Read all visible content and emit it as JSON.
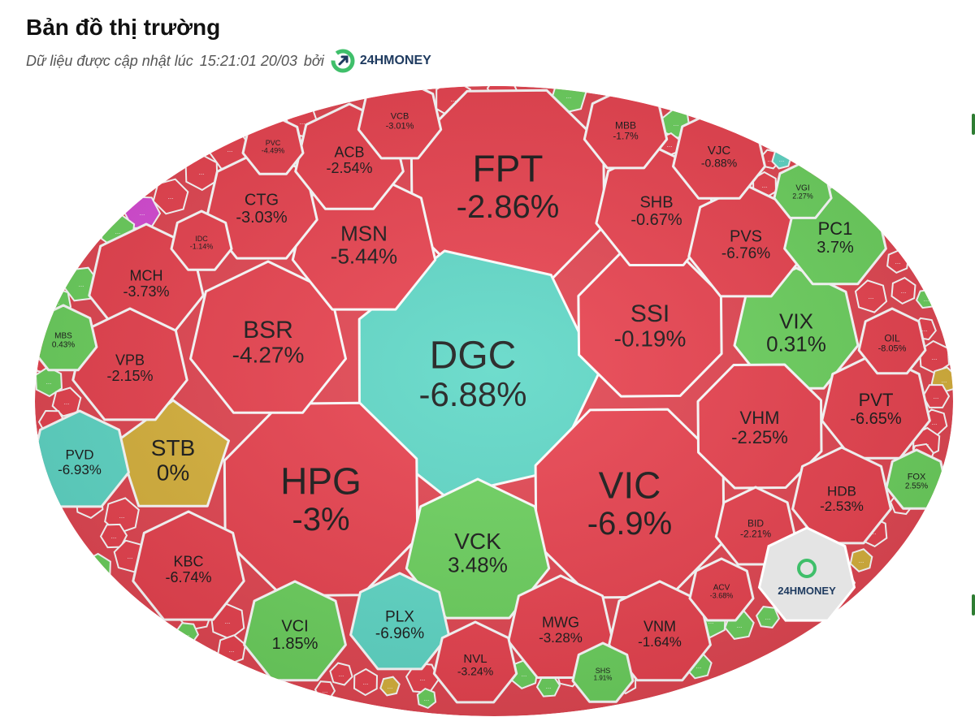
{
  "header": {
    "title": "Bản đồ thị trường",
    "updated_prefix": "Dữ liệu được cập nhật lúc",
    "updated_time": "15:21:01 20/03",
    "updated_by": "bởi",
    "brand": "24HMONEY"
  },
  "colors": {
    "down": "#e9424f",
    "up": "#6cd15e",
    "ceiling": "#d84bd6",
    "floor": "#5fd8c7",
    "reference": "#d8b23c",
    "brand_badge": "#e4e4e4"
  },
  "placeholder_label": "...",
  "watermark": "24HMONEY",
  "stocks": [
    {
      "id": "fpt",
      "ticker": "FPT",
      "change": "-2.86%",
      "status": "down"
    },
    {
      "id": "dgc",
      "ticker": "DGC",
      "change": "-6.88%",
      "status": "floor"
    },
    {
      "id": "hpg",
      "ticker": "HPG",
      "change": "-3%",
      "status": "down"
    },
    {
      "id": "vic",
      "ticker": "VIC",
      "change": "-6.9%",
      "status": "down"
    },
    {
      "id": "bsr",
      "ticker": "BSR",
      "change": "-4.27%",
      "status": "down"
    },
    {
      "id": "msn",
      "ticker": "MSN",
      "change": "-5.44%",
      "status": "down"
    },
    {
      "id": "ssi",
      "ticker": "SSI",
      "change": "-0.19%",
      "status": "down"
    },
    {
      "id": "vix",
      "ticker": "VIX",
      "change": "0.31%",
      "status": "up"
    },
    {
      "id": "vck",
      "ticker": "VCK",
      "change": "3.48%",
      "status": "up"
    },
    {
      "id": "stb",
      "ticker": "STB",
      "change": "0%",
      "status": "reference"
    },
    {
      "id": "vhm",
      "ticker": "VHM",
      "change": "-2.25%",
      "status": "down"
    },
    {
      "id": "pvt",
      "ticker": "PVT",
      "change": "-6.65%",
      "status": "down"
    },
    {
      "id": "shb",
      "ticker": "SHB",
      "change": "-0.67%",
      "status": "down"
    },
    {
      "id": "pvs",
      "ticker": "PVS",
      "change": "-6.76%",
      "status": "down"
    },
    {
      "id": "pc1",
      "ticker": "PC1",
      "change": "3.7%",
      "status": "up"
    },
    {
      "id": "ctg",
      "ticker": "CTG",
      "change": "-3.03%",
      "status": "down"
    },
    {
      "id": "acb",
      "ticker": "ACB",
      "change": "-2.54%",
      "status": "down"
    },
    {
      "id": "mch",
      "ticker": "MCH",
      "change": "-3.73%",
      "status": "down"
    },
    {
      "id": "vpb",
      "ticker": "VPB",
      "change": "-2.15%",
      "status": "down"
    },
    {
      "id": "pvd",
      "ticker": "PVD",
      "change": "-6.93%",
      "status": "floor"
    },
    {
      "id": "kbc",
      "ticker": "KBC",
      "change": "-6.74%",
      "status": "down"
    },
    {
      "id": "vci",
      "ticker": "VCI",
      "change": "1.85%",
      "status": "up"
    },
    {
      "id": "plx",
      "ticker": "PLX",
      "change": "-6.96%",
      "status": "floor"
    },
    {
      "id": "mwg",
      "ticker": "MWG",
      "change": "-3.28%",
      "status": "down"
    },
    {
      "id": "vnm",
      "ticker": "VNM",
      "change": "-1.64%",
      "status": "down"
    },
    {
      "id": "nvl",
      "ticker": "NVL",
      "change": "-3.24%",
      "status": "down"
    },
    {
      "id": "hdb",
      "ticker": "HDB",
      "change": "-2.53%",
      "status": "down"
    },
    {
      "id": "bid",
      "ticker": "BID",
      "change": "-2.21%",
      "status": "down"
    },
    {
      "id": "vjc",
      "ticker": "VJC",
      "change": "-0.88%",
      "status": "down"
    },
    {
      "id": "mbb",
      "ticker": "MBB",
      "change": "-1.7%",
      "status": "down"
    },
    {
      "id": "vcb",
      "ticker": "VCB",
      "change": "-3.01%",
      "status": "down"
    },
    {
      "id": "pvc",
      "ticker": "PVC",
      "change": "-4.49%",
      "status": "down"
    },
    {
      "id": "idc",
      "ticker": "IDC",
      "change": "-1.14%",
      "status": "down"
    },
    {
      "id": "mbs",
      "ticker": "MBS",
      "change": "0.43%",
      "status": "up"
    },
    {
      "id": "vgi",
      "ticker": "VGI",
      "change": "2.27%",
      "status": "up"
    },
    {
      "id": "oil",
      "ticker": "OIL",
      "change": "-8.05%",
      "status": "down"
    },
    {
      "id": "fox",
      "ticker": "FOX",
      "change": "2.55%",
      "status": "up"
    },
    {
      "id": "acv",
      "ticker": "ACV",
      "change": "-3.68%",
      "status": "down"
    },
    {
      "id": "shs",
      "ticker": "SHS",
      "change": "1.91%",
      "status": "up"
    }
  ],
  "small_cells": [
    "down",
    "up",
    "down",
    "up",
    "down",
    "up",
    "down",
    "down",
    "floor",
    "down",
    "down",
    "down",
    "down",
    "down",
    "down",
    "down",
    "ceiling",
    "up",
    "up",
    "up",
    "down",
    "up",
    "down",
    "down",
    "down",
    "down",
    "up",
    "down",
    "down",
    "reference",
    "down",
    "down",
    "down",
    "down",
    "down",
    "down",
    "reference",
    "down",
    "reference",
    "up",
    "up",
    "up",
    "down",
    "down",
    "down",
    "down",
    "up",
    "down",
    "up",
    "down",
    "down",
    "down",
    "down",
    "down",
    "reference",
    "down",
    "up",
    "up",
    "up",
    "down",
    "down",
    "up",
    "down",
    "down"
  ]
}
